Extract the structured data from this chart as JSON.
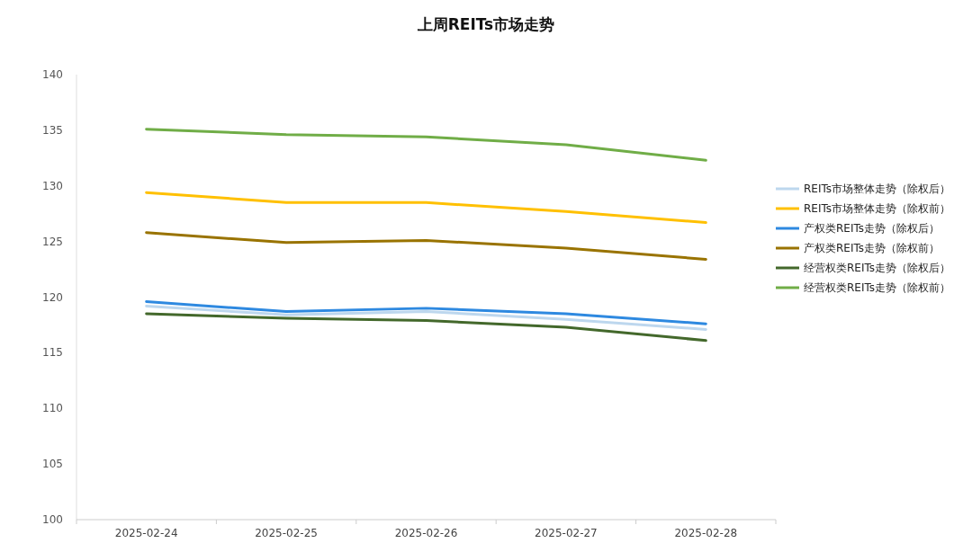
{
  "chart_data": {
    "type": "line",
    "title": "上周REITs市场走势",
    "categories": [
      "2025-02-24",
      "2025-02-25",
      "2025-02-26",
      "2025-02-27",
      "2025-02-28"
    ],
    "series": [
      {
        "name": "REITs市场整体走势（除权后）",
        "color": "#bdd7ee",
        "values": [
          119.2,
          118.4,
          118.7,
          118.0,
          117.1
        ]
      },
      {
        "name": "REITs市场整体走势（除权前）",
        "color": "#ffc000",
        "values": [
          129.4,
          128.5,
          128.5,
          127.7,
          126.7
        ]
      },
      {
        "name": "产权类REITs走势（除权后）",
        "color": "#2e89e0",
        "values": [
          119.6,
          118.7,
          119.0,
          118.5,
          117.6
        ]
      },
      {
        "name": "产权类REITs走势（除权前）",
        "color": "#997300",
        "values": [
          125.8,
          124.9,
          125.1,
          124.4,
          123.4
        ]
      },
      {
        "name": "经营权类REITs走势（除权后）",
        "color": "#43682b",
        "values": [
          118.5,
          118.1,
          117.9,
          117.3,
          116.1
        ]
      },
      {
        "name": "经营权类REITs走势（除权前）",
        "color": "#70ad47",
        "values": [
          135.1,
          134.6,
          134.4,
          133.7,
          132.3
        ]
      }
    ],
    "ylim": [
      100,
      140
    ],
    "yticks": [
      100,
      105,
      110,
      115,
      120,
      125,
      130,
      135,
      140
    ],
    "grid": false,
    "legend": "right",
    "marker": "none",
    "line_style": "solid"
  }
}
